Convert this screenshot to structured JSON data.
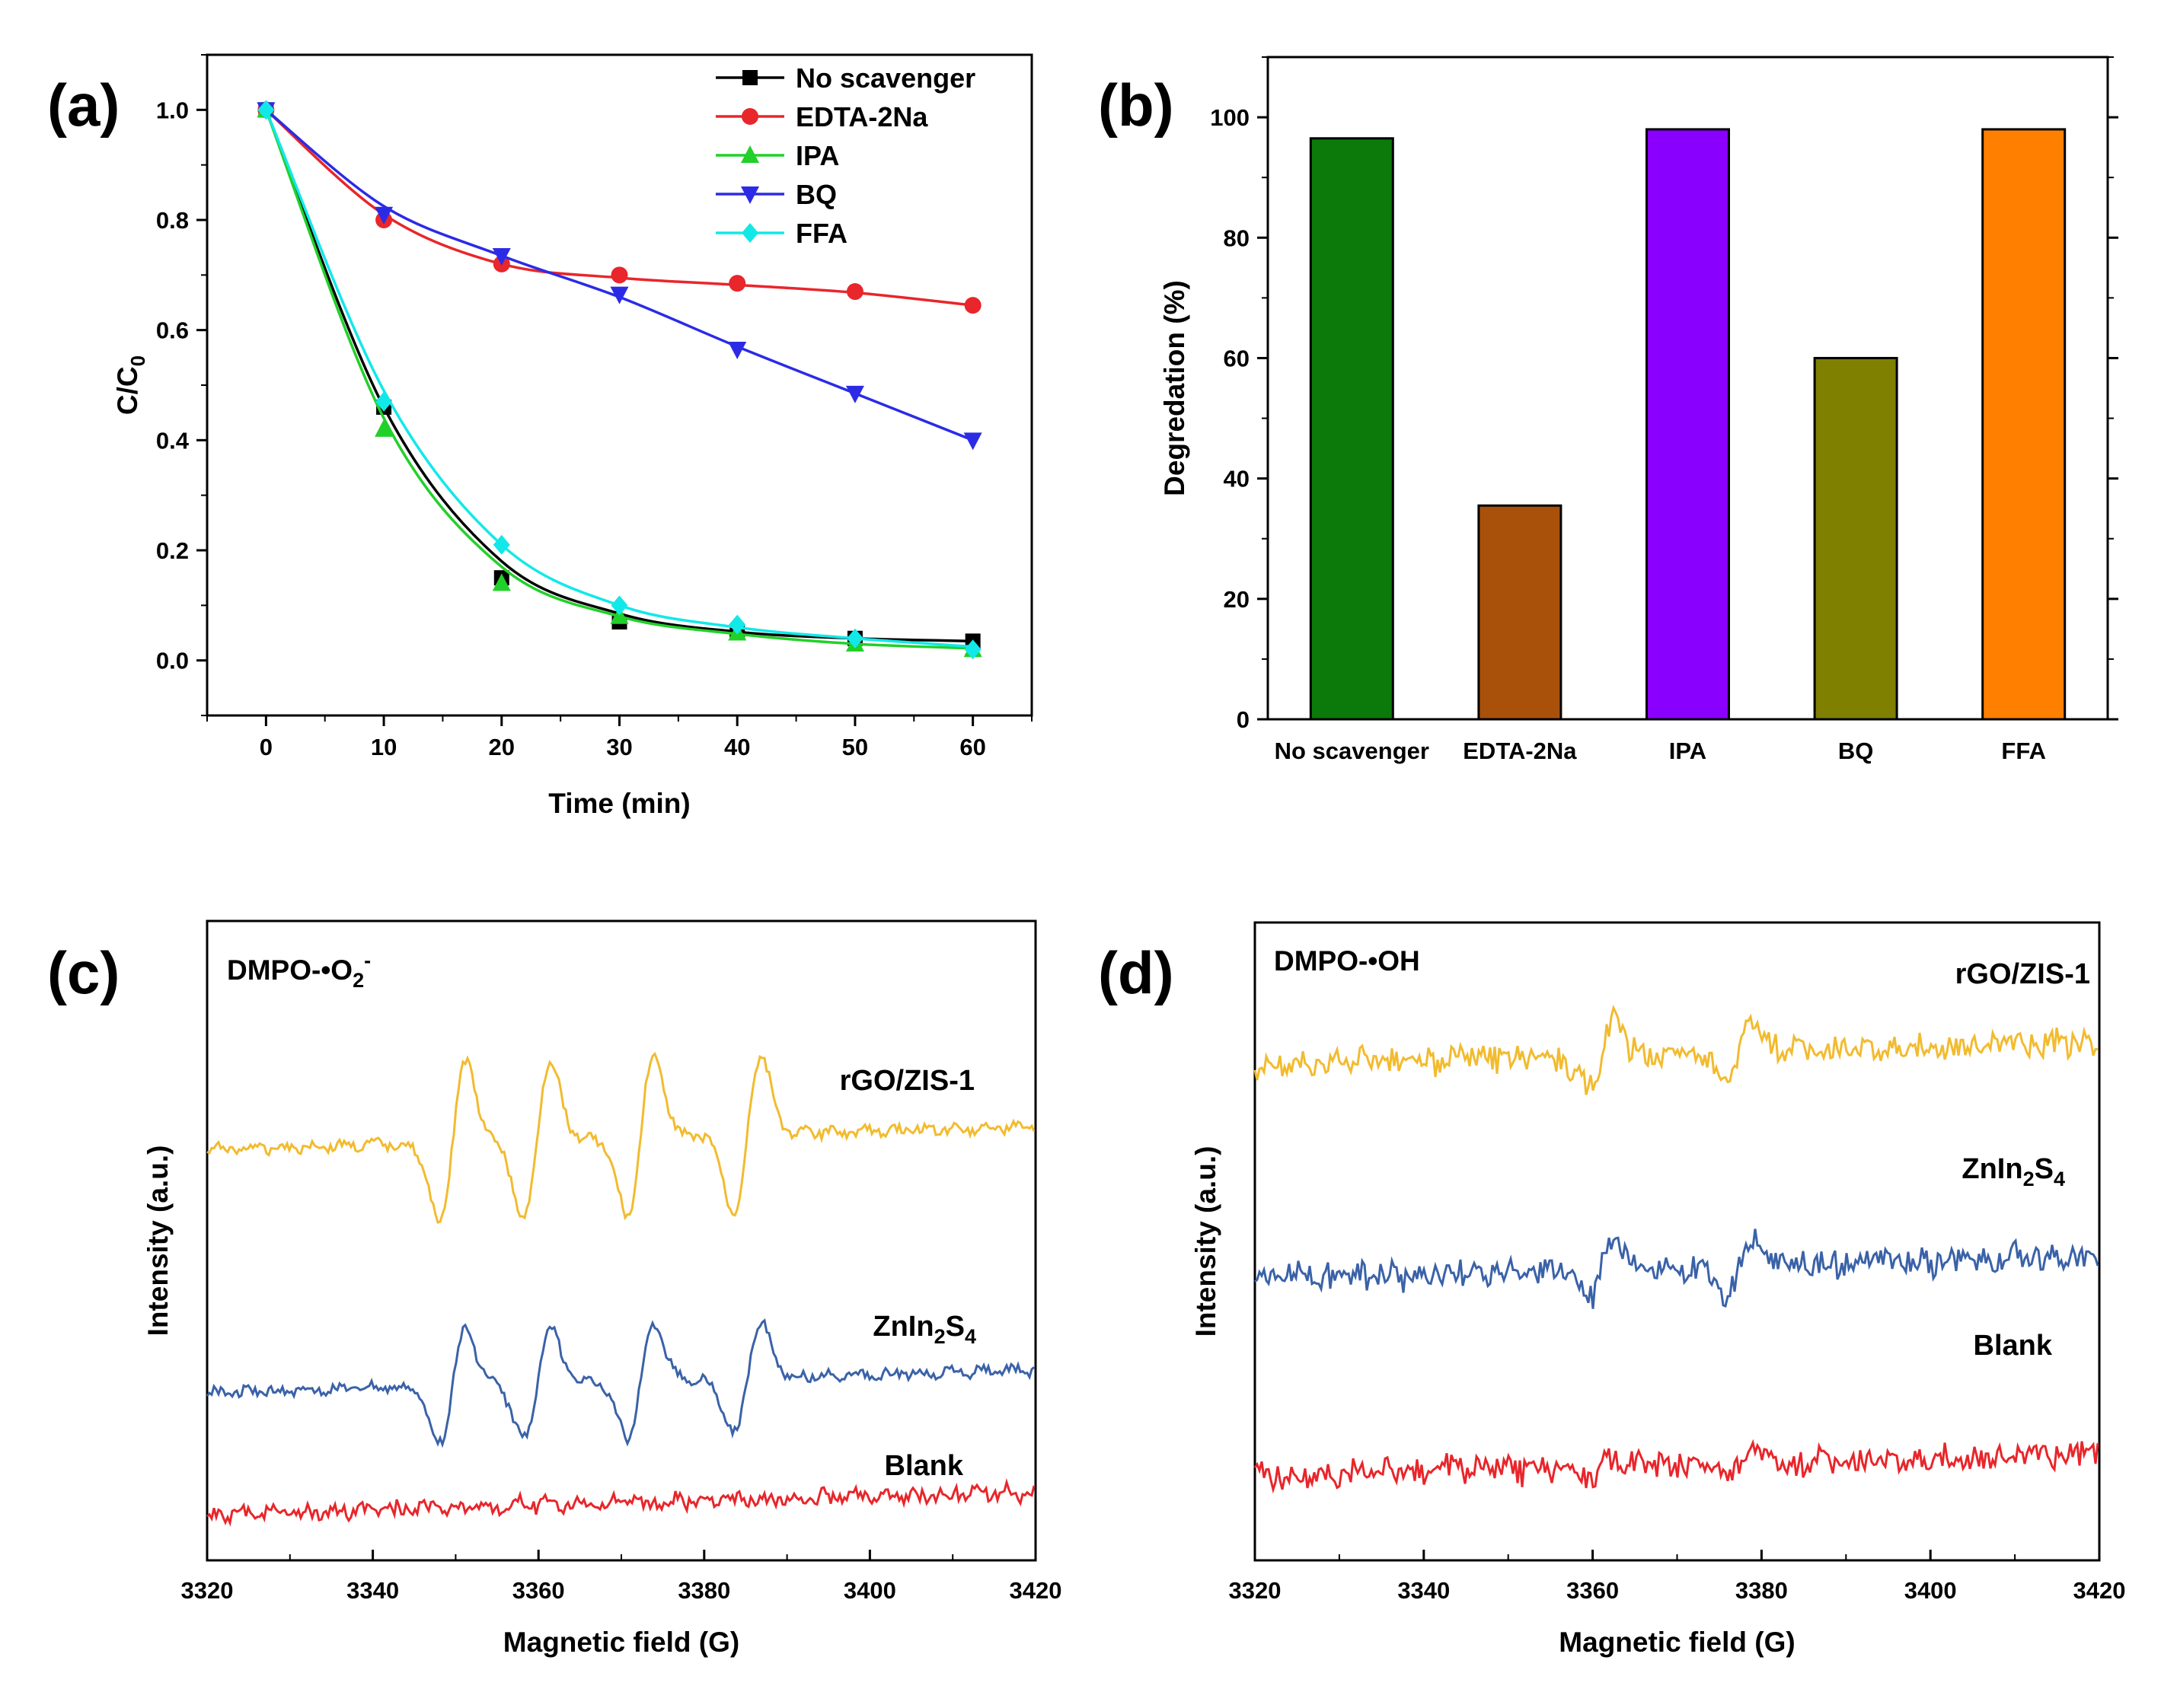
{
  "chart_data": [
    {
      "id": "a",
      "panel_label": "(a)",
      "type": "line",
      "xlabel": "Time (min)",
      "ylabel": {
        "main": "C/C",
        "sub": "0"
      },
      "xlim": [
        -5,
        65
      ],
      "ylim": [
        -0.1,
        1.1
      ],
      "xticks": [
        0,
        10,
        20,
        30,
        40,
        50,
        60
      ],
      "yticks": [
        "0.0",
        "0.2",
        "0.4",
        "0.6",
        "0.8",
        "1.0"
      ],
      "legend_position": "top-right",
      "series": [
        {
          "name": "No scavenger",
          "color": "#000000",
          "marker": "square",
          "x": [
            0,
            10,
            20,
            30,
            40,
            50,
            60
          ],
          "points": [
            1.0,
            0.46,
            0.15,
            0.07,
            0.05,
            0.04,
            0.035
          ],
          "fit": [
            1.0,
            0.46,
            0.18,
            0.085,
            0.052,
            0.04,
            0.035
          ]
        },
        {
          "name": "EDTA-2Na",
          "color": "#e8262b",
          "marker": "circle",
          "x": [
            0,
            10,
            20,
            30,
            40,
            50,
            60
          ],
          "points": [
            1.0,
            0.8,
            0.72,
            0.7,
            0.685,
            0.67,
            0.645
          ],
          "fit": [
            1.0,
            0.81,
            0.72,
            0.695,
            0.682,
            0.668,
            0.645
          ]
        },
        {
          "name": "IPA",
          "color": "#22d02a",
          "marker": "triangle-up",
          "x": [
            0,
            10,
            20,
            30,
            40,
            50,
            60
          ],
          "points": [
            1.0,
            0.42,
            0.14,
            0.08,
            0.05,
            0.03,
            0.02
          ],
          "fit": [
            1.0,
            0.44,
            0.17,
            0.08,
            0.048,
            0.03,
            0.022
          ]
        },
        {
          "name": "BQ",
          "color": "#2b2be6",
          "marker": "triangle-down",
          "x": [
            0,
            10,
            20,
            30,
            40,
            50,
            60
          ],
          "points": [
            1.0,
            0.81,
            0.735,
            0.665,
            0.565,
            0.485,
            0.4
          ],
          "fit": [
            1.0,
            0.825,
            0.735,
            0.66,
            0.57,
            0.485,
            0.4
          ]
        },
        {
          "name": "FFA",
          "color": "#12e8e8",
          "marker": "diamond",
          "x": [
            0,
            10,
            20,
            30,
            40,
            50,
            60
          ],
          "points": [
            1.0,
            0.47,
            0.21,
            0.1,
            0.065,
            0.04,
            0.02
          ],
          "fit": [
            1.0,
            0.49,
            0.21,
            0.1,
            0.06,
            0.04,
            0.025
          ]
        }
      ]
    },
    {
      "id": "b",
      "panel_label": "(b)",
      "type": "bar",
      "xlabel": "",
      "ylabel": "Degredation (%)",
      "ylim": [
        0,
        110
      ],
      "yticks": [
        "0",
        "20",
        "40",
        "60",
        "80",
        "100"
      ],
      "categories": [
        "No scavenger",
        "EDTA-2Na",
        "IPA",
        "BQ",
        "FFA"
      ],
      "values": [
        96.5,
        35.5,
        98,
        60,
        98
      ],
      "colors": [
        "#0b7a0b",
        "#a9510a",
        "#8a00ff",
        "#808000",
        "#ff8000"
      ]
    },
    {
      "id": "c",
      "panel_label": "(c)",
      "type": "line",
      "annotation": {
        "main": "DMPO-•O",
        "sub": "2",
        "sup": "-"
      },
      "xlabel": "Magnetic field (G)",
      "ylabel": "Intensity (a.u.)",
      "xlim": [
        3320,
        3420
      ],
      "xticks": [
        3320,
        3340,
        3360,
        3380,
        3400,
        3420
      ],
      "peak_centers_G": [
        3349.6,
        3359.8,
        3372.3,
        3385.2
      ],
      "series": [
        {
          "name": "rGO/ZIS-1",
          "label": {
            "main": "rGO/ZIS-1"
          },
          "color": "#f2bb2f",
          "amplitude": 1.0
        },
        {
          "name": "ZnIn2S4",
          "label": {
            "main": "ZnIn",
            "sub1": "2",
            "mid": "S",
            "sub2": "4"
          },
          "color": "#3a62a8",
          "amplitude": 0.7
        },
        {
          "name": "Blank",
          "label": {
            "main": "Blank"
          },
          "color": "#e8262b",
          "amplitude": 0.0
        }
      ]
    },
    {
      "id": "d",
      "panel_label": "(d)",
      "type": "line",
      "annotation": {
        "main": "DMPO-•OH"
      },
      "xlabel": "Magnetic field (G)",
      "ylabel": "Intensity (a.u.)",
      "xlim": [
        3320,
        3420
      ],
      "xticks": [
        3320,
        3340,
        3360,
        3380,
        3400,
        3420
      ],
      "peak_centers_G": [
        3361.0,
        3377.5
      ],
      "series": [
        {
          "name": "rGO/ZIS-1",
          "label": {
            "main": "rGO/ZIS-1"
          },
          "color": "#f2bb2f",
          "amplitude": 0.4
        },
        {
          "name": "ZnIn2S4",
          "label": {
            "main": "ZnIn",
            "sub1": "2",
            "mid": "S",
            "sub2": "4"
          },
          "color": "#3a62a8",
          "amplitude": 0.35
        },
        {
          "name": "Blank",
          "label": {
            "main": "Blank"
          },
          "color": "#e8262b",
          "amplitude": 0.1
        }
      ]
    }
  ]
}
